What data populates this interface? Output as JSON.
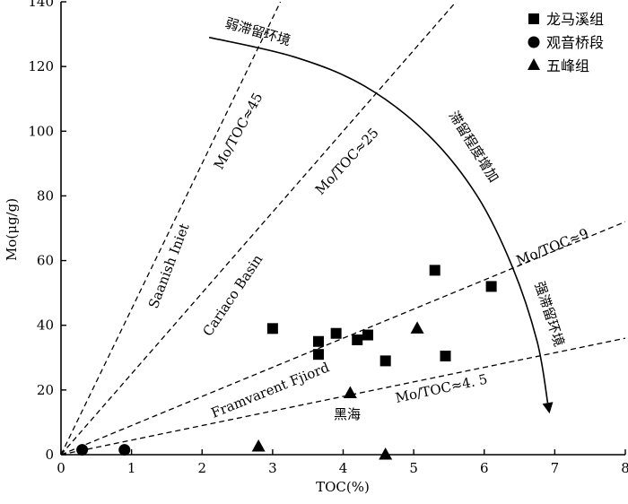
{
  "chart_data": {
    "type": "scatter",
    "xlabel": "TOC(%)",
    "ylabel": "Mo(μg/g)",
    "xlim": [
      0,
      8
    ],
    "ylim": [
      0,
      140
    ],
    "xticks": [
      0,
      1,
      2,
      3,
      4,
      5,
      6,
      7,
      8
    ],
    "yticks": [
      0,
      20,
      40,
      60,
      80,
      100,
      120,
      140
    ],
    "grid": false,
    "legend_position": "top-right",
    "series": [
      {
        "name": "龙马溪组",
        "marker": "square",
        "points": [
          [
            3.0,
            39
          ],
          [
            3.65,
            35
          ],
          [
            3.65,
            31
          ],
          [
            3.9,
            37.5
          ],
          [
            4.2,
            35.5
          ],
          [
            4.35,
            37
          ],
          [
            4.6,
            29
          ],
          [
            5.45,
            30.5
          ],
          [
            5.3,
            57
          ],
          [
            6.1,
            52
          ]
        ]
      },
      {
        "name": "观音桥段",
        "marker": "circle",
        "points": [
          [
            0.3,
            1.5
          ],
          [
            0.9,
            1.5
          ]
        ]
      },
      {
        "name": "五峰组",
        "marker": "triangle",
        "points": [
          [
            2.8,
            2.5
          ],
          [
            4.1,
            19
          ],
          [
            4.6,
            0
          ],
          [
            5.05,
            39
          ]
        ]
      }
    ],
    "reference_lines": [
      {
        "label": "Mo/TOC≈45",
        "slope": 45
      },
      {
        "label": "Mo/TOC≈25",
        "slope": 25
      },
      {
        "label": "Mo/TOC≈9",
        "slope": 9
      },
      {
        "label": "Mo/TOC≈4. 5",
        "slope": 4.5
      }
    ],
    "annotations": {
      "weak": "弱滞留环境",
      "increasing": "滞留程度增加",
      "strong": "强滞留环境",
      "saanich": "Saanish Iniet",
      "cariaco": "Cariaco Basin",
      "framvarent": "Framvarent Fjiord",
      "blacksea": "黑海"
    },
    "trend_curve": {
      "points": [
        [
          2.1,
          129
        ],
        [
          3.3,
          123
        ],
        [
          4.3,
          114
        ],
        [
          5.2,
          99
        ],
        [
          5.9,
          80
        ],
        [
          6.4,
          58
        ],
        [
          6.75,
          35
        ],
        [
          6.9,
          16
        ]
      ]
    }
  }
}
